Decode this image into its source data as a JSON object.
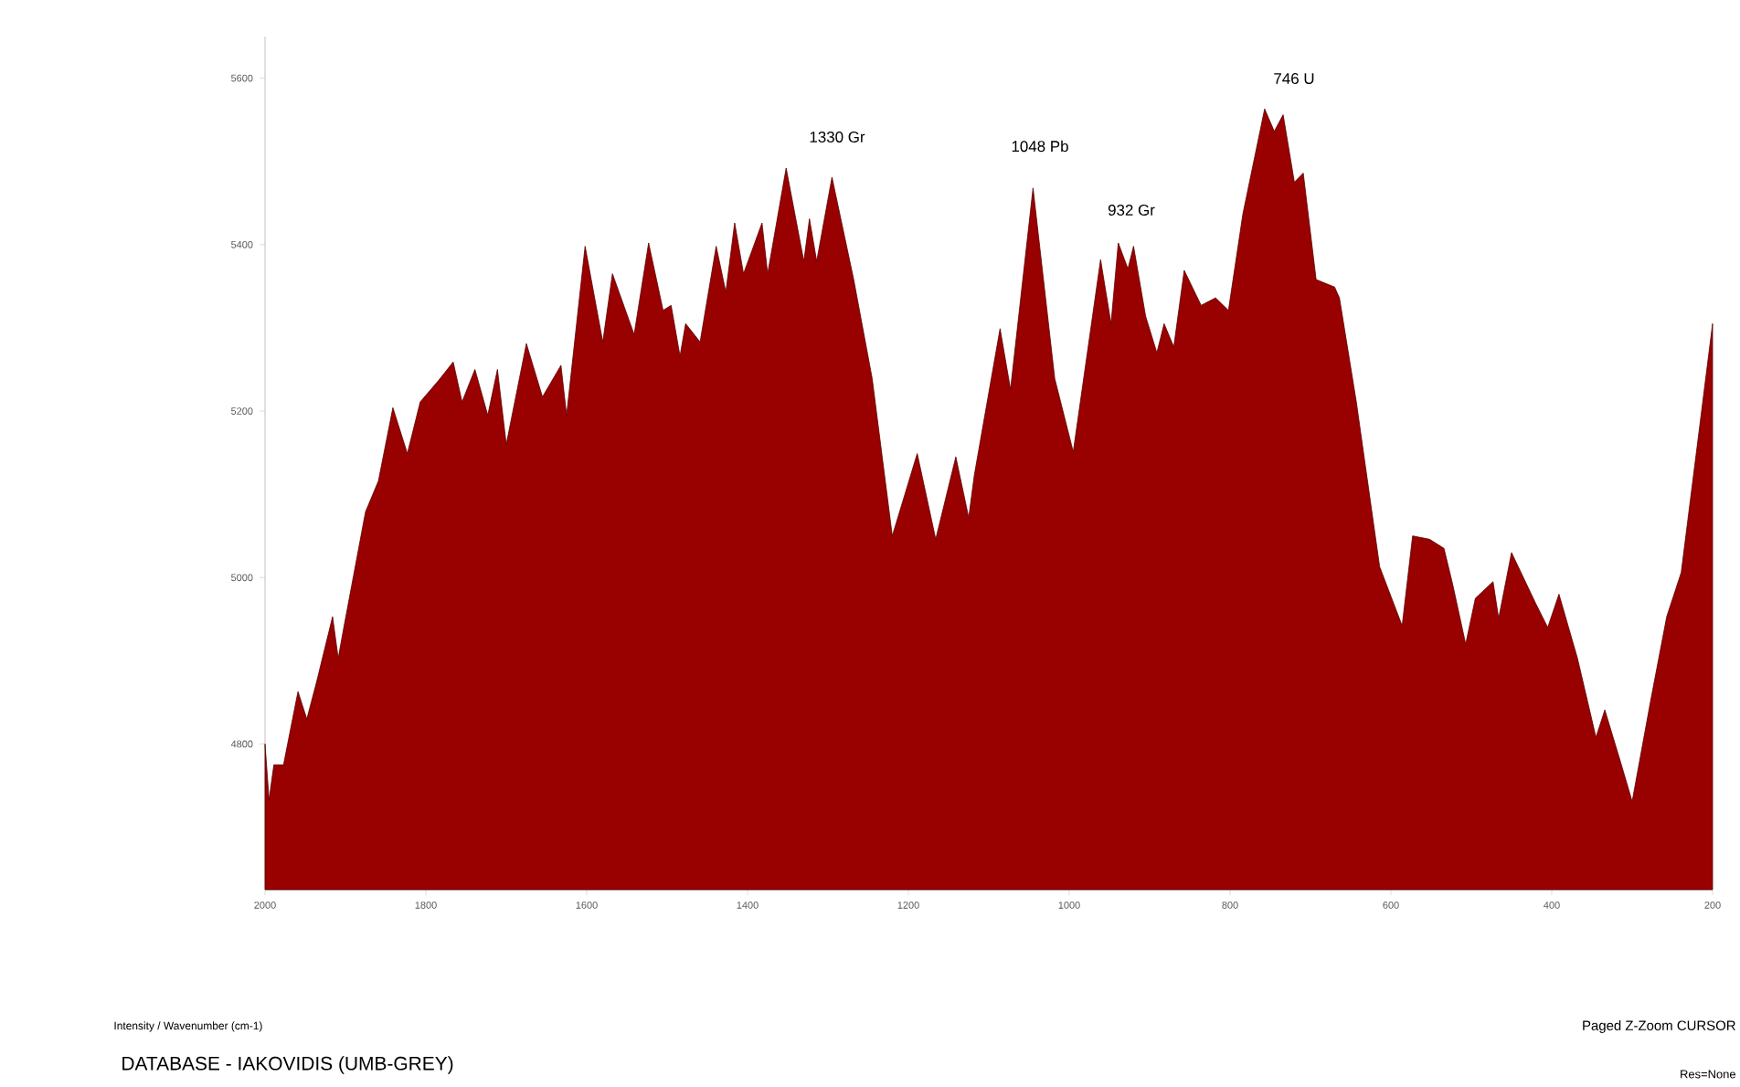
{
  "chart_data": {
    "type": "area",
    "xlim": [
      2000,
      200
    ],
    "ylim": [
      4625,
      5650
    ],
    "xticks": [
      2000,
      1800,
      1600,
      1400,
      1200,
      1000,
      800,
      600,
      400,
      200
    ],
    "yticks": [
      4800,
      5000,
      5200,
      5400,
      5600
    ],
    "grid": false,
    "x": [
      2000,
      1995,
      1989,
      1977,
      1959,
      1948,
      1936,
      1916,
      1909,
      1902,
      1875,
      1859,
      1841,
      1823,
      1807,
      1784,
      1766,
      1755,
      1739,
      1723,
      1711,
      1700,
      1675,
      1655,
      1632,
      1625,
      1602,
      1580,
      1568,
      1541,
      1523,
      1505,
      1495,
      1484,
      1477,
      1459,
      1439,
      1427,
      1416,
      1405,
      1382,
      1375,
      1352,
      1330,
      1323,
      1314,
      1295,
      1268,
      1245,
      1220,
      1189,
      1166,
      1141,
      1125,
      1118,
      1086,
      1073,
      1045,
      1018,
      995,
      961,
      948,
      939,
      927,
      920,
      905,
      891,
      882,
      870,
      857,
      836,
      818,
      802,
      784,
      757,
      745,
      734,
      720,
      709,
      693,
      670,
      664,
      643,
      614,
      586,
      573,
      552,
      534,
      523,
      507,
      495,
      473,
      466,
      450,
      420,
      405,
      391,
      368,
      345,
      334,
      314,
      300,
      277,
      257,
      239,
      216,
      200
    ],
    "series": [
      {
        "color": "#990000",
        "values": [
          4800,
          4733,
          4775,
          4775,
          4863,
          4830,
          4874,
          4953,
          4903,
          4940,
          5079,
          5116,
          5204,
          5149,
          5211,
          5237,
          5259,
          5211,
          5250,
          5195,
          5250,
          5160,
          5281,
          5217,
          5255,
          5195,
          5398,
          5283,
          5365,
          5292,
          5402,
          5321,
          5327,
          5266,
          5305,
          5283,
          5398,
          5343,
          5426,
          5365,
          5426,
          5365,
          5492,
          5380,
          5431,
          5380,
          5481,
          5358,
          5239,
          5050,
          5149,
          5046,
          5145,
          5072,
          5123,
          5299,
          5226,
          5468,
          5239,
          5151,
          5382,
          5305,
          5402,
          5371,
          5398,
          5314,
          5270,
          5305,
          5277,
          5369,
          5327,
          5336,
          5321,
          5437,
          5563,
          5536,
          5556,
          5475,
          5486,
          5358,
          5349,
          5336,
          5211,
          5013,
          4942,
          5050,
          5046,
          5035,
          4991,
          4920,
          4975,
          4995,
          4951,
          5030,
          4969,
          4940,
          4980,
          4903,
          4808,
          4841,
          4777,
          4731,
          4852,
          4953,
          5006,
          5182,
          5305
        ]
      }
    ],
    "annotations": [
      "1330 Gr",
      "1048 Pb",
      "932 Gr",
      "746 U",
      "Intensity / Wavenumber (cm-1)",
      "DATABASE - IAKOVIDIS (UMB-GREY)",
      "Paged  Z-Zoom CURSOR",
      "Res=None"
    ]
  }
}
